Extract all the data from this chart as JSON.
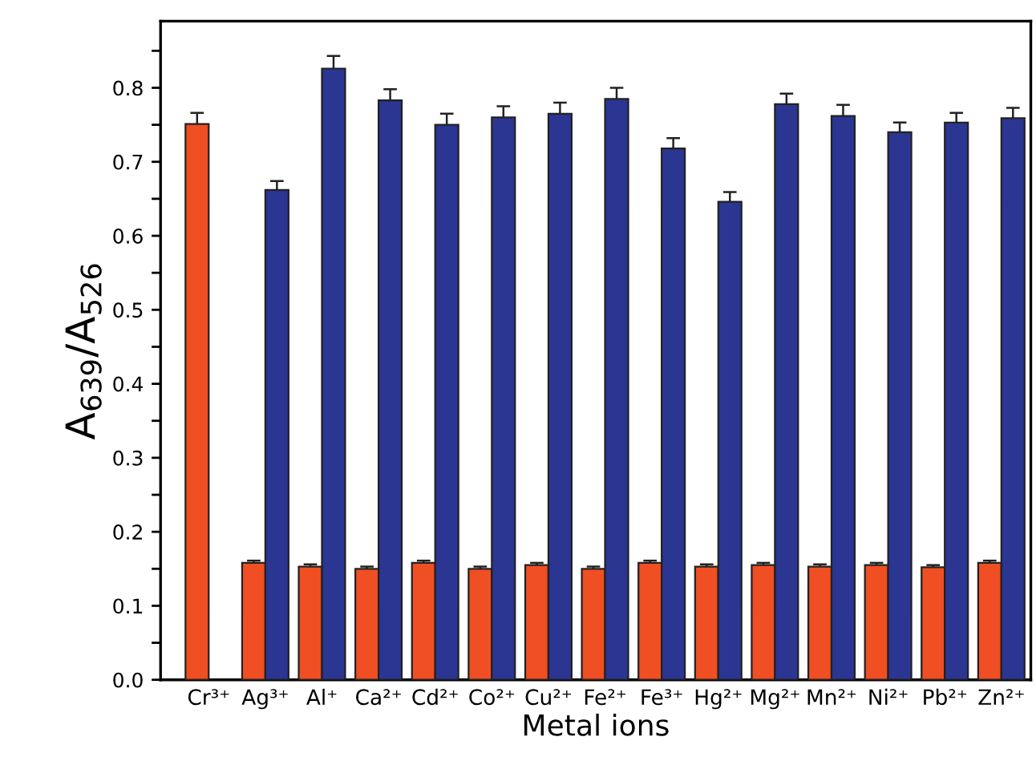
{
  "chart_data": {
    "type": "bar",
    "xlabel": "Metal ions",
    "ylabel": "A$_{639}$/A$_{526}$",
    "categories": [
      "Cr³⁺",
      "Ag³⁺",
      "Al⁺",
      "Ca²⁺",
      "Cd²⁺",
      "Co²⁺",
      "Cu²⁺",
      "Fe²⁺",
      "Fe³⁺",
      "Hg²⁺",
      "Mg²⁺",
      "Mn²⁺",
      "Ni²⁺",
      "Pb²⁺",
      "Zn²⁺"
    ],
    "series": [
      {
        "color": "#f04e23",
        "values": [
          0.751,
          0.158,
          0.153,
          0.15,
          0.158,
          0.15,
          0.155,
          0.15,
          0.158,
          0.153,
          0.155,
          0.153,
          0.155,
          0.152,
          0.158
        ],
        "errors": [
          0.015,
          0.003,
          0.003,
          0.003,
          0.003,
          0.003,
          0.003,
          0.003,
          0.003,
          0.003,
          0.003,
          0.003,
          0.003,
          0.003,
          0.003
        ]
      },
      {
        "color": "#2b3592",
        "values": [
          null,
          0.662,
          0.826,
          0.783,
          0.75,
          0.76,
          0.765,
          0.785,
          0.718,
          0.646,
          0.778,
          0.762,
          0.74,
          0.753,
          0.759
        ],
        "errors": [
          null,
          0.012,
          0.017,
          0.015,
          0.015,
          0.015,
          0.015,
          0.015,
          0.014,
          0.013,
          0.014,
          0.015,
          0.013,
          0.013,
          0.014
        ]
      }
    ],
    "ylim": [
      0,
      0.89
    ],
    "yticks": [
      {
        "value": 0,
        "label": "0.0"
      },
      {
        "value": 0.05,
        "label": null
      },
      0.1,
      {
        "value": 0.15,
        "label": null
      },
      0.2,
      {
        "value": 0.25,
        "label": null
      },
      0.3,
      {
        "value": 0.35,
        "label": null
      },
      0.4,
      {
        "value": 0.45,
        "label": null
      },
      0.5,
      {
        "value": 0.55,
        "label": null
      },
      0.6,
      {
        "value": 0.65,
        "label": null
      },
      0.7,
      {
        "value": 0.75,
        "label": null
      },
      0.8,
      {
        "value": 0.85,
        "label": null
      }
    ],
    "grid": false,
    "legend": false
  }
}
